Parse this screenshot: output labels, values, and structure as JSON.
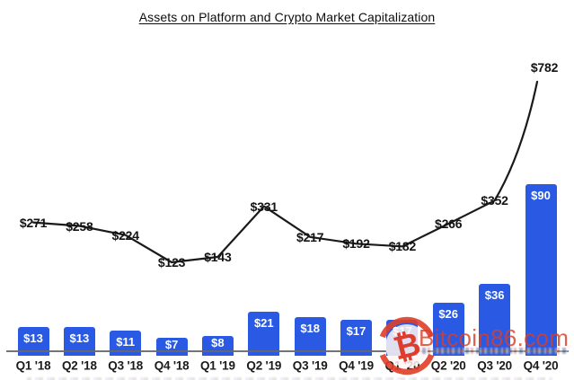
{
  "chart_data": {
    "type": "combo-bar-line",
    "title": "Assets on Platform and Crypto Market Capitalization",
    "categories": [
      "Q1 '18",
      "Q2 '18",
      "Q3 '18",
      "Q4 '18",
      "Q1 '19",
      "Q2 '19",
      "Q3 '19",
      "Q4 '19",
      "Q1 '20",
      "Q2 '20",
      "Q3 '20",
      "Q4 '20"
    ],
    "series": [
      {
        "name": "Assets on Platform",
        "type": "bar",
        "unit": "$ billions",
        "values": [
          13,
          13,
          11,
          7,
          8,
          21,
          18,
          17,
          17,
          26,
          36,
          90
        ],
        "labels": [
          "$13",
          "$13",
          "$11",
          "$7",
          "$8",
          "$21",
          "$18",
          "$17",
          "$17",
          "$26",
          "$36",
          "$90"
        ],
        "color": "#2a5ae4",
        "label_color": "#ffffff"
      },
      {
        "name": "Crypto Market Capitalization",
        "type": "line",
        "unit": "$ billions",
        "values": [
          271,
          258,
          224,
          123,
          143,
          331,
          217,
          192,
          182,
          266,
          352,
          782
        ],
        "labels": [
          "$271",
          "$258",
          "$224",
          "$123",
          "$143",
          "$331",
          "$217",
          "$192",
          "$182",
          "$266",
          "$352",
          "$782"
        ],
        "color": "#1a1a1a"
      }
    ],
    "legend": "none",
    "grid": false
  },
  "watermark": {
    "text": "Bitcoin86.com",
    "symbol": "₿",
    "color": "#dc3e26"
  }
}
